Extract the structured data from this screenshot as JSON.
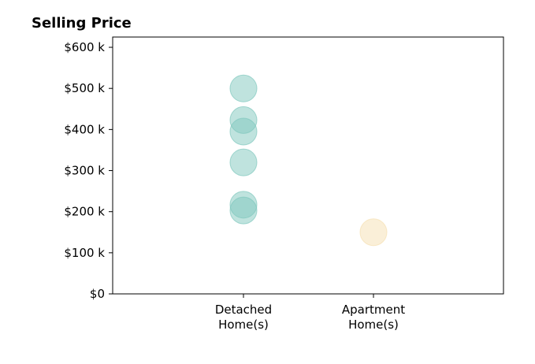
{
  "chart_data": {
    "type": "scatter",
    "title": "Selling Price",
    "xlabel": "",
    "ylabel": "",
    "categories": [
      [
        "Detached",
        "Home(s)"
      ],
      [
        "Apartment",
        "Home(s)"
      ]
    ],
    "ylim": [
      0,
      625000
    ],
    "yticks": [
      0,
      100000,
      200000,
      300000,
      400000,
      500000,
      600000
    ],
    "ytick_labels": [
      "$0",
      "$100 k",
      "$200 k",
      "$300 k",
      "$400 k",
      "$500 k",
      "$600 k"
    ],
    "grid": false,
    "series": [
      {
        "category": 0,
        "color": "#7fc8bd",
        "values": [
          500000,
          423000,
          395000,
          320000,
          217000,
          203000
        ]
      },
      {
        "category": 1,
        "color": "#f5dfb2",
        "values": [
          150000
        ]
      }
    ]
  }
}
